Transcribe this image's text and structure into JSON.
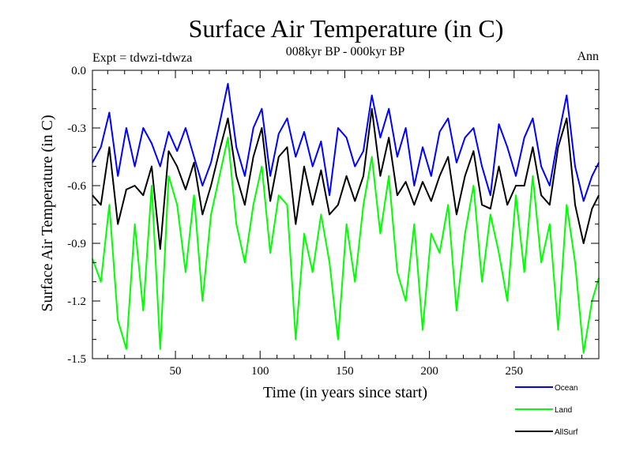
{
  "header": {
    "title": "Surface Air Temperature (in C)",
    "subtitle": "008kyr BP - 000kyr BP",
    "experiment": "Expt = tdwzi-tdwza",
    "period": "Ann"
  },
  "chart_data": {
    "type": "line",
    "title": "Surface Air Temperature (in C)",
    "subtitle": "008kyr BP - 000kyr BP",
    "xlabel": "Time (in years since start)",
    "ylabel": "Surface Air Temperature (in C)",
    "xlim": [
      1,
      300
    ],
    "ylim": [
      -1.5,
      0.0
    ],
    "x_ticks": [
      50,
      100,
      150,
      200,
      250
    ],
    "y_ticks": [
      0.0,
      -0.3,
      -0.6,
      -0.9,
      -1.2,
      -1.5
    ],
    "y_tick_labels": [
      "0.0",
      "-0.3",
      "-0.6",
      "-0.9",
      "-1.2",
      "-1.5"
    ],
    "grid": false,
    "legend_position": "bottom-right",
    "x": [
      1,
      6,
      11,
      16,
      21,
      26,
      31,
      36,
      41,
      46,
      51,
      56,
      61,
      66,
      71,
      76,
      81,
      86,
      91,
      96,
      101,
      106,
      111,
      116,
      121,
      126,
      131,
      136,
      141,
      146,
      151,
      156,
      161,
      166,
      171,
      176,
      181,
      186,
      191,
      196,
      201,
      206,
      211,
      216,
      221,
      226,
      231,
      236,
      241,
      246,
      251,
      256,
      261,
      266,
      271,
      276,
      281,
      286,
      291,
      296,
      300
    ],
    "series": [
      {
        "name": "Ocean",
        "color": "#0000ff",
        "values": [
          -0.48,
          -0.4,
          -0.22,
          -0.55,
          -0.3,
          -0.5,
          -0.3,
          -0.38,
          -0.5,
          -0.32,
          -0.42,
          -0.3,
          -0.45,
          -0.6,
          -0.48,
          -0.28,
          -0.07,
          -0.4,
          -0.55,
          -0.3,
          -0.2,
          -0.55,
          -0.33,
          -0.25,
          -0.45,
          -0.32,
          -0.5,
          -0.37,
          -0.65,
          -0.3,
          -0.35,
          -0.5,
          -0.42,
          -0.13,
          -0.35,
          -0.2,
          -0.45,
          -0.3,
          -0.6,
          -0.4,
          -0.55,
          -0.32,
          -0.25,
          -0.48,
          -0.35,
          -0.3,
          -0.5,
          -0.65,
          -0.28,
          -0.4,
          -0.55,
          -0.35,
          -0.25,
          -0.5,
          -0.6,
          -0.35,
          -0.13,
          -0.5,
          -0.68,
          -0.55,
          -0.48
        ]
      },
      {
        "name": "Land",
        "color": "#00ff00",
        "values": [
          -0.98,
          -1.1,
          -0.7,
          -1.3,
          -1.45,
          -0.8,
          -1.25,
          -0.6,
          -1.45,
          -0.55,
          -0.7,
          -1.05,
          -0.65,
          -1.2,
          -0.75,
          -0.55,
          -0.35,
          -0.8,
          -1.0,
          -0.7,
          -0.5,
          -0.95,
          -0.65,
          -0.7,
          -1.4,
          -0.85,
          -1.05,
          -0.75,
          -1.0,
          -1.4,
          -0.8,
          -1.1,
          -0.7,
          -0.45,
          -0.85,
          -0.55,
          -1.05,
          -1.2,
          -0.8,
          -1.35,
          -0.85,
          -0.95,
          -0.7,
          -1.25,
          -0.85,
          -0.6,
          -1.1,
          -0.75,
          -0.95,
          -1.2,
          -0.65,
          -1.05,
          -0.55,
          -1.0,
          -0.8,
          -1.35,
          -0.7,
          -1.0,
          -1.47,
          -1.2,
          -1.08
        ]
      },
      {
        "name": "AllSurf",
        "color": "#000000",
        "values": [
          -0.65,
          -0.7,
          -0.4,
          -0.8,
          -0.62,
          -0.6,
          -0.65,
          -0.5,
          -0.93,
          -0.42,
          -0.5,
          -0.62,
          -0.48,
          -0.75,
          -0.6,
          -0.42,
          -0.25,
          -0.55,
          -0.7,
          -0.45,
          -0.3,
          -0.68,
          -0.45,
          -0.4,
          -0.8,
          -0.5,
          -0.7,
          -0.52,
          -0.75,
          -0.7,
          -0.55,
          -0.68,
          -0.55,
          -0.2,
          -0.55,
          -0.35,
          -0.65,
          -0.58,
          -0.7,
          -0.58,
          -0.68,
          -0.55,
          -0.45,
          -0.75,
          -0.55,
          -0.42,
          -0.7,
          -0.72,
          -0.5,
          -0.7,
          -0.6,
          -0.6,
          -0.4,
          -0.65,
          -0.7,
          -0.4,
          -0.25,
          -0.7,
          -0.9,
          -0.72,
          -0.65
        ]
      }
    ]
  }
}
